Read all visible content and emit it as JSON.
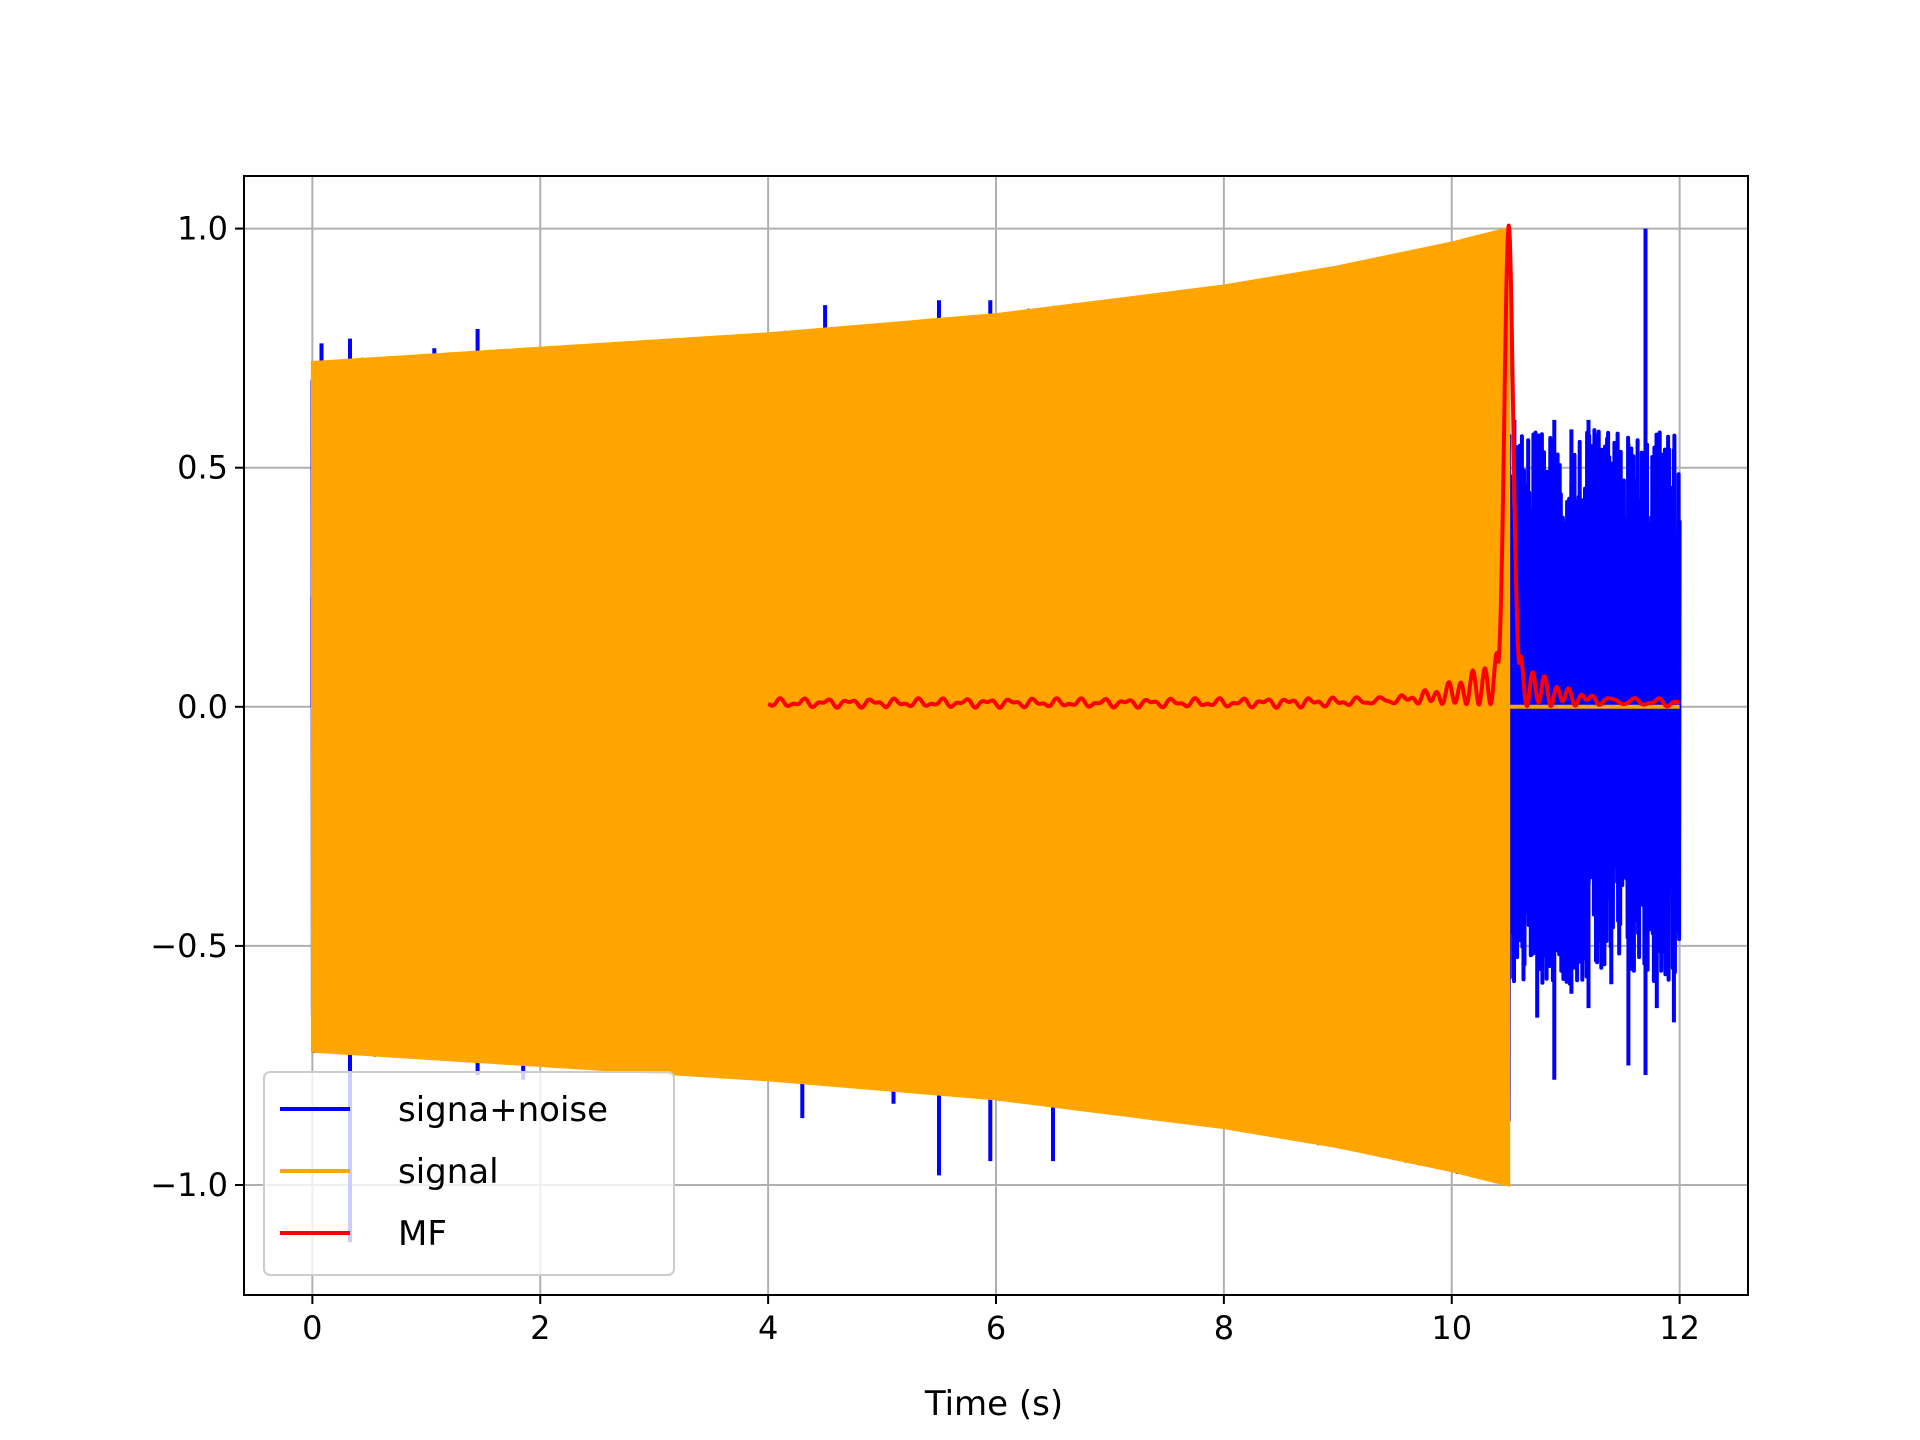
{
  "chart_data": {
    "type": "line",
    "title": "",
    "xlabel": "Time (s)",
    "ylabel": "",
    "xlim": [
      -0.6,
      12.6
    ],
    "ylim": [
      -1.23,
      1.11
    ],
    "xticks": [
      0,
      2,
      4,
      6,
      8,
      10,
      12
    ],
    "xtick_labels": [
      "0",
      "2",
      "4",
      "6",
      "8",
      "10",
      "12"
    ],
    "yticks": [
      -1.0,
      -0.5,
      0.0,
      0.5,
      1.0
    ],
    "ytick_labels": [
      "−1.0",
      "−0.5",
      "0.0",
      "0.5",
      "1.0"
    ],
    "grid": true,
    "legend_position": "lower-left",
    "series": [
      {
        "name": "signa+noise",
        "color": "#0000ff",
        "start": 0.0,
        "end": 12.0,
        "noise_upper_spikes": [
          [
            0.0,
            0.23
          ],
          [
            0.08,
            0.76
          ],
          [
            0.33,
            0.77
          ],
          [
            1.07,
            0.75
          ],
          [
            1.45,
            0.79
          ],
          [
            4.5,
            0.84
          ],
          [
            5.5,
            0.85
          ],
          [
            5.95,
            0.85
          ],
          [
            10.55,
            0.6
          ],
          [
            10.9,
            0.6
          ],
          [
            11.05,
            0.58
          ],
          [
            11.2,
            0.6
          ],
          [
            11.4,
            0.5
          ],
          [
            11.55,
            0.55
          ],
          [
            11.7,
            1.0
          ],
          [
            11.8,
            0.57
          ],
          [
            11.95,
            0.54
          ]
        ],
        "noise_lower_spikes": [
          [
            0.33,
            -1.12
          ],
          [
            1.45,
            -0.77
          ],
          [
            1.85,
            -0.78
          ],
          [
            4.3,
            -0.86
          ],
          [
            5.1,
            -0.83
          ],
          [
            5.5,
            -0.98
          ],
          [
            5.95,
            -0.95
          ],
          [
            6.5,
            -0.95
          ],
          [
            10.55,
            -0.5
          ],
          [
            10.75,
            -0.65
          ],
          [
            10.9,
            -0.78
          ],
          [
            11.05,
            -0.6
          ],
          [
            11.2,
            -0.63
          ],
          [
            11.4,
            -0.58
          ],
          [
            11.55,
            -0.75
          ],
          [
            11.7,
            -0.77
          ],
          [
            11.8,
            -0.63
          ],
          [
            11.95,
            -0.66
          ]
        ]
      },
      {
        "name": "signal",
        "color": "#ffa500",
        "start": 0.0,
        "end": 10.5,
        "envelope": [
          [
            0.0,
            0.72
          ],
          [
            2.0,
            0.75
          ],
          [
            4.0,
            0.78
          ],
          [
            6.0,
            0.82
          ],
          [
            8.0,
            0.88
          ],
          [
            9.0,
            0.92
          ],
          [
            10.0,
            0.97
          ],
          [
            10.5,
            1.0
          ]
        ],
        "value_after_end": 0.0
      },
      {
        "name": "MF",
        "color": "#ff0000",
        "start": 4.0,
        "end": 12.0,
        "peak": [
          10.5,
          1.0
        ]
      }
    ]
  }
}
